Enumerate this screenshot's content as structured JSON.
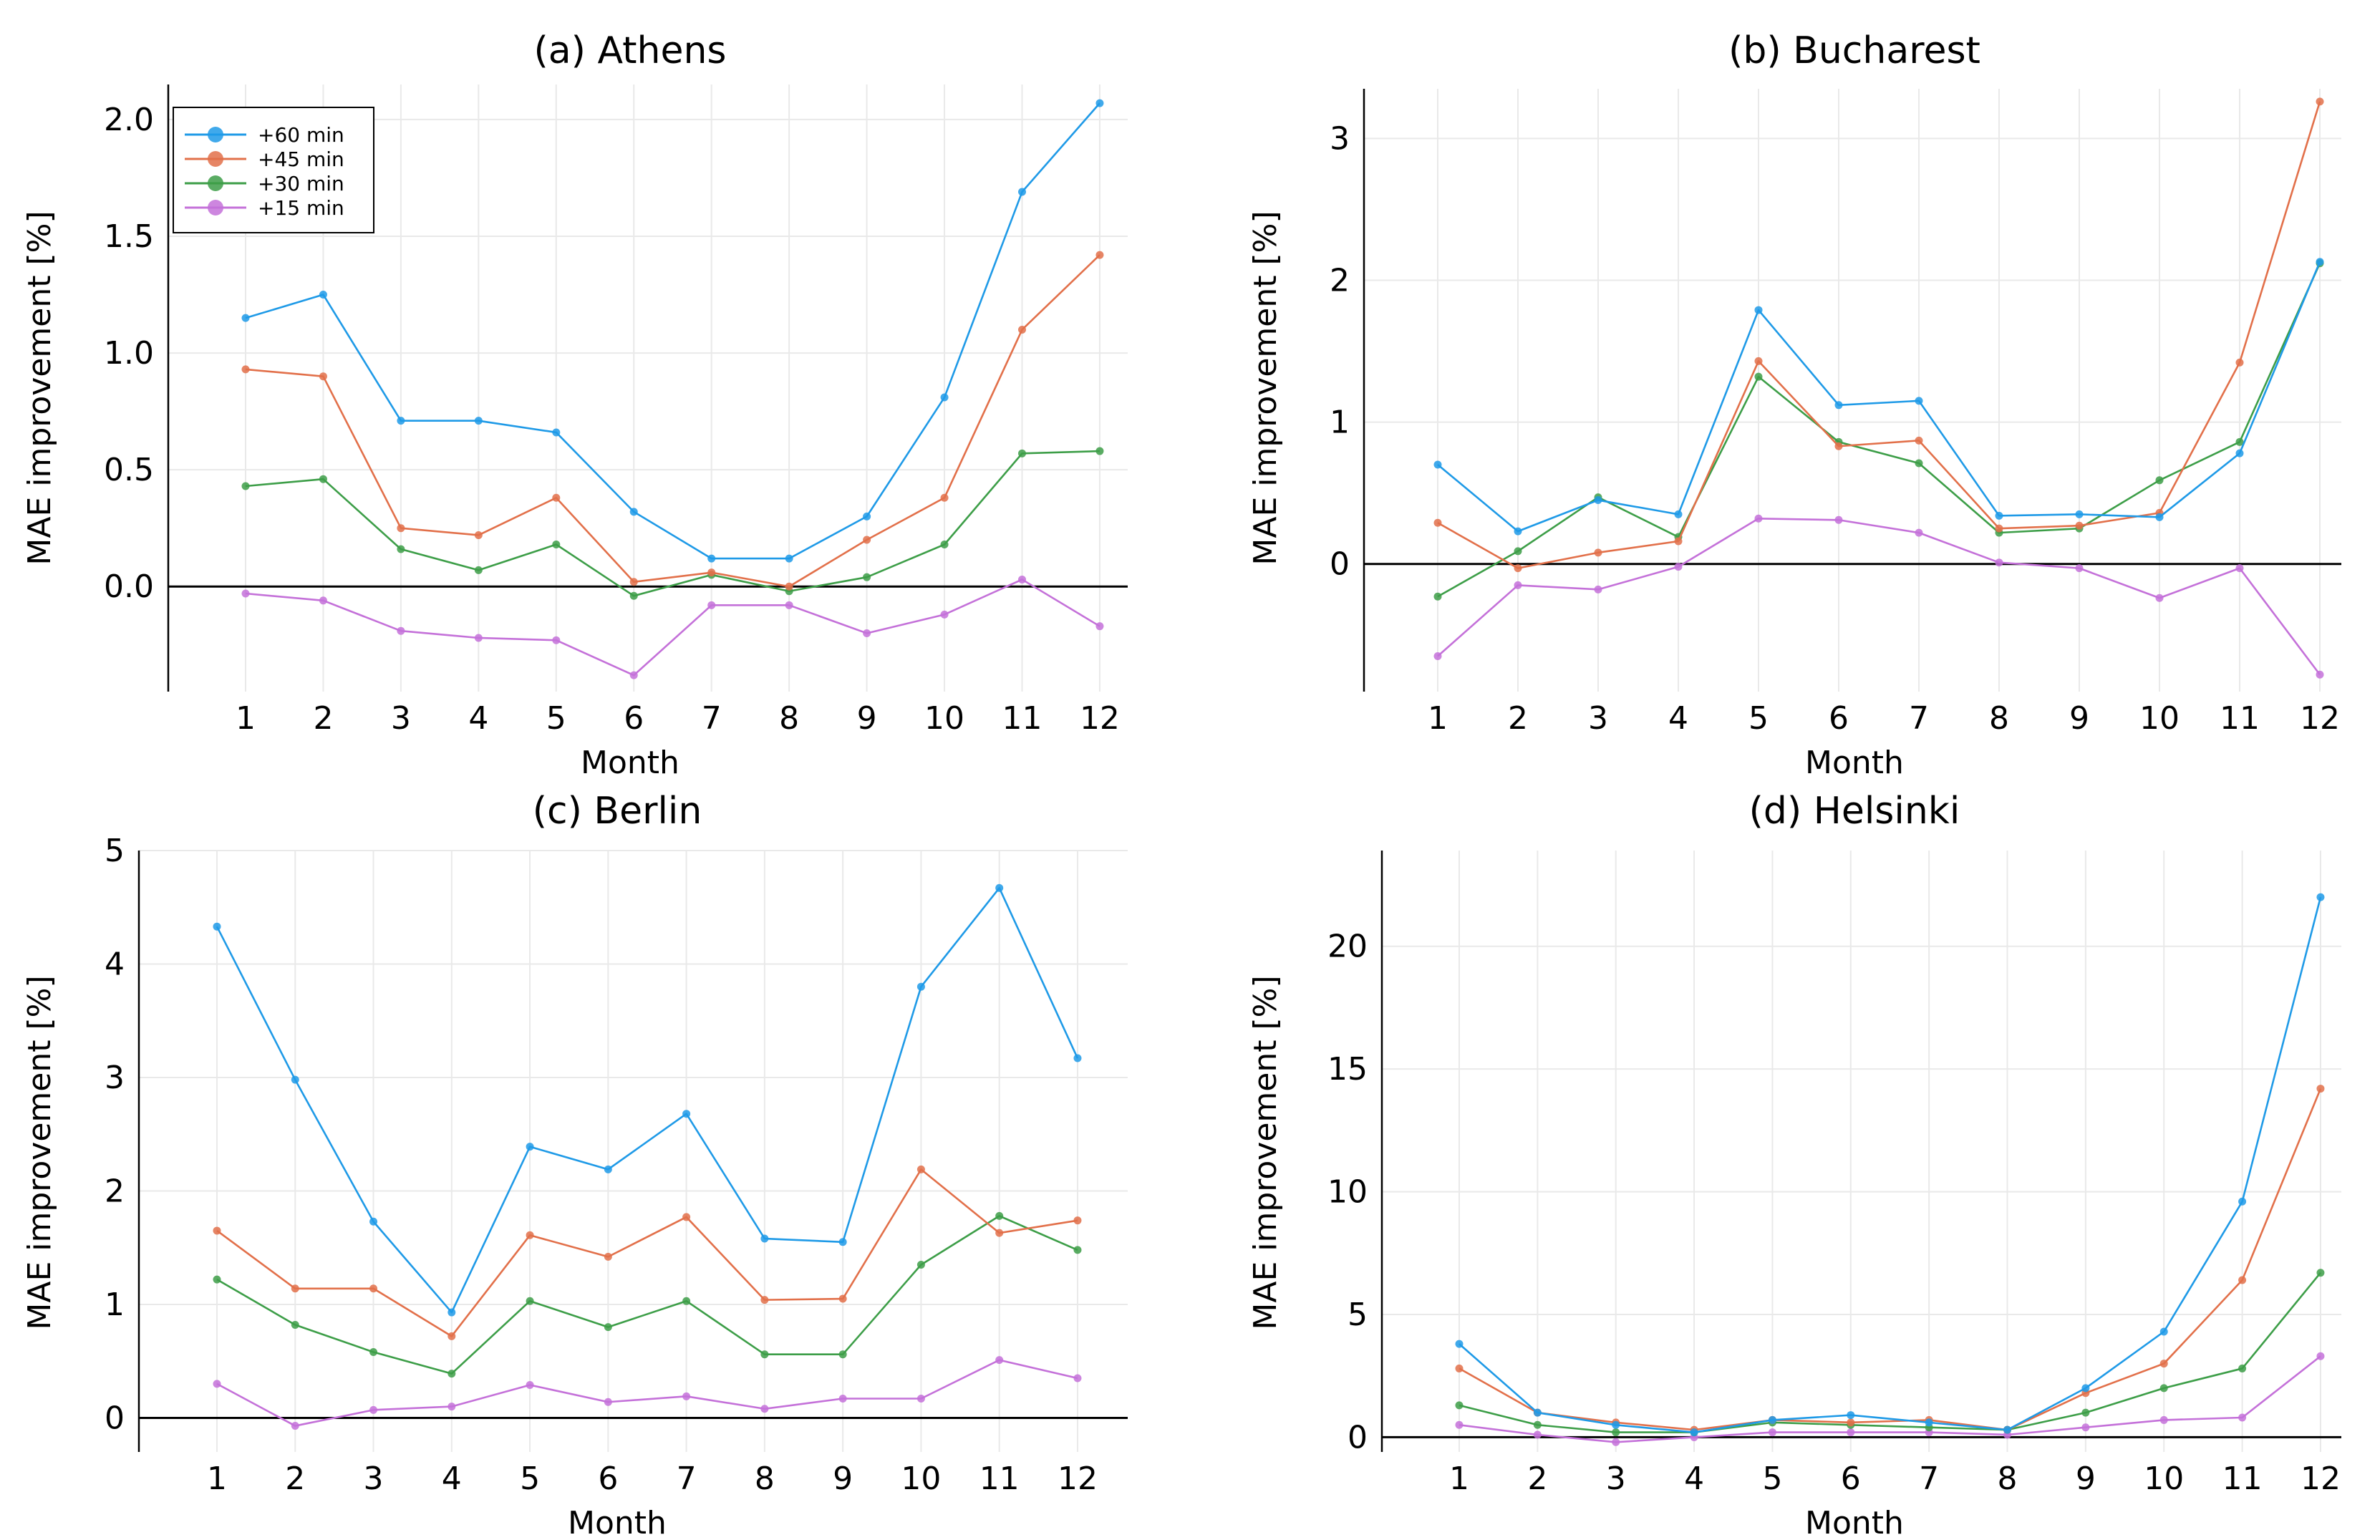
{
  "legend": {
    "entries": [
      "+60 min",
      "+45 min",
      "+30 min",
      "+15 min"
    ],
    "panel": 0,
    "placement": "top-left"
  },
  "series_colors": {
    "+60 min": "#1f9ae7",
    "+45 min": "#e2704a",
    "+30 min": "#3d9e48",
    "+15 min": "#c471d9"
  },
  "chart_data": [
    {
      "type": "line",
      "title": "(a) Athens",
      "xlabel": "Month",
      "ylabel": "MAE improvement [%]",
      "categories": [
        1,
        2,
        3,
        4,
        5,
        6,
        7,
        8,
        9,
        10,
        11,
        12
      ],
      "ylim": [
        -0.45,
        2.15
      ],
      "yticks": [
        0.0,
        0.5,
        1.0,
        1.5,
        2.0
      ],
      "ytick_labels": [
        "0.0",
        "0.5",
        "1.0",
        "1.5",
        "2.0"
      ],
      "grid": true,
      "series": [
        {
          "name": "+60 min",
          "values": [
            1.15,
            1.25,
            0.71,
            0.71,
            0.66,
            0.32,
            0.12,
            0.12,
            0.3,
            0.81,
            1.69,
            2.07
          ]
        },
        {
          "name": "+45 min",
          "values": [
            0.93,
            0.9,
            0.25,
            0.22,
            0.38,
            0.02,
            0.06,
            0.0,
            0.2,
            0.38,
            1.1,
            1.42
          ]
        },
        {
          "name": "+30 min",
          "values": [
            0.43,
            0.46,
            0.16,
            0.07,
            0.18,
            -0.04,
            0.05,
            -0.02,
            0.04,
            0.18,
            0.57,
            0.58
          ]
        },
        {
          "name": "+15 min",
          "values": [
            -0.03,
            -0.06,
            -0.19,
            -0.22,
            -0.23,
            -0.38,
            -0.08,
            -0.08,
            -0.2,
            -0.12,
            0.03,
            -0.17
          ]
        }
      ]
    },
    {
      "type": "line",
      "title": "(b) Bucharest",
      "xlabel": "Month",
      "ylabel": "MAE improvement [%]",
      "categories": [
        1,
        2,
        3,
        4,
        5,
        6,
        7,
        8,
        9,
        10,
        11,
        12
      ],
      "ylim": [
        -0.9,
        3.35
      ],
      "yticks": [
        0,
        1,
        2,
        3
      ],
      "ytick_labels": [
        "0",
        "1",
        "2",
        "3"
      ],
      "grid": true,
      "series": [
        {
          "name": "+60 min",
          "values": [
            0.7,
            0.23,
            0.45,
            0.35,
            1.79,
            1.12,
            1.15,
            0.34,
            0.35,
            0.33,
            0.78,
            2.13
          ]
        },
        {
          "name": "+45 min",
          "values": [
            0.29,
            -0.03,
            0.08,
            0.16,
            1.43,
            0.83,
            0.87,
            0.25,
            0.27,
            0.36,
            1.42,
            3.26
          ]
        },
        {
          "name": "+30 min",
          "values": [
            -0.23,
            0.09,
            0.47,
            0.19,
            1.32,
            0.86,
            0.71,
            0.22,
            0.25,
            0.59,
            0.86,
            2.12
          ]
        },
        {
          "name": "+15 min",
          "values": [
            -0.65,
            -0.15,
            -0.18,
            -0.02,
            0.32,
            0.31,
            0.22,
            0.01,
            -0.03,
            -0.24,
            -0.03,
            -0.78
          ]
        }
      ]
    },
    {
      "type": "line",
      "title": "(c) Berlin",
      "xlabel": "Month",
      "ylabel": "MAE improvement [%]",
      "categories": [
        1,
        2,
        3,
        4,
        5,
        6,
        7,
        8,
        9,
        10,
        11,
        12
      ],
      "ylim": [
        -0.3,
        5.0
      ],
      "yticks": [
        0,
        1,
        2,
        3,
        4,
        5
      ],
      "ytick_labels": [
        "0",
        "1",
        "2",
        "3",
        "4",
        "5"
      ],
      "grid": true,
      "series": [
        {
          "name": "+60 min",
          "values": [
            4.33,
            2.98,
            1.73,
            0.93,
            2.39,
            2.19,
            2.68,
            1.58,
            1.55,
            3.8,
            4.67,
            3.17
          ]
        },
        {
          "name": "+45 min",
          "values": [
            1.65,
            1.14,
            1.14,
            0.72,
            1.61,
            1.42,
            1.77,
            1.04,
            1.05,
            2.19,
            1.63,
            1.74
          ]
        },
        {
          "name": "+30 min",
          "values": [
            1.22,
            0.82,
            0.58,
            0.39,
            1.03,
            0.8,
            1.03,
            0.56,
            0.56,
            1.35,
            1.78,
            1.48
          ]
        },
        {
          "name": "+15 min",
          "values": [
            0.3,
            -0.07,
            0.07,
            0.1,
            0.29,
            0.14,
            0.19,
            0.08,
            0.17,
            0.17,
            0.51,
            0.35
          ]
        }
      ]
    },
    {
      "type": "line",
      "title": "(d) Helsinki",
      "xlabel": "Month",
      "ylabel": "MAE improvement [%]",
      "categories": [
        1,
        2,
        3,
        4,
        5,
        6,
        7,
        8,
        9,
        10,
        11,
        12
      ],
      "ylim": [
        -0.6,
        23.9
      ],
      "yticks": [
        0,
        5,
        10,
        15,
        20
      ],
      "ytick_labels": [
        "0",
        "5",
        "10",
        "15",
        "20"
      ],
      "grid": true,
      "series": [
        {
          "name": "+60 min",
          "values": [
            3.8,
            1.0,
            0.5,
            0.2,
            0.7,
            0.9,
            0.6,
            0.3,
            2.0,
            4.3,
            9.6,
            22.0
          ]
        },
        {
          "name": "+45 min",
          "values": [
            2.8,
            1.0,
            0.6,
            0.3,
            0.7,
            0.6,
            0.7,
            0.3,
            1.8,
            3.0,
            6.4,
            14.2
          ]
        },
        {
          "name": "+30 min",
          "values": [
            1.3,
            0.5,
            0.2,
            0.2,
            0.6,
            0.5,
            0.4,
            0.3,
            1.0,
            2.0,
            2.8,
            6.7
          ]
        },
        {
          "name": "+15 min",
          "values": [
            0.5,
            0.1,
            -0.2,
            0.0,
            0.2,
            0.2,
            0.2,
            0.1,
            0.4,
            0.7,
            0.8,
            3.3
          ]
        }
      ]
    }
  ]
}
